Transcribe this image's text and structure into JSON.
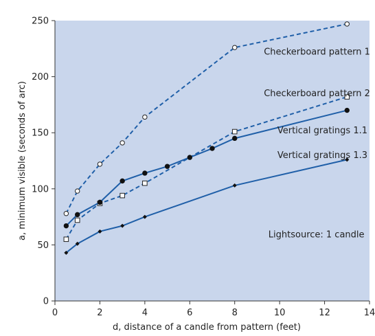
{
  "chart_data": {
    "type": "line",
    "title": "",
    "xlabel": "d, distance of a candle from pattern (feet)",
    "ylabel": "a, minimum visible (seconds of arc)",
    "xlim": [
      0,
      14
    ],
    "ylim": [
      0,
      250
    ],
    "xticks": [
      0,
      2,
      4,
      6,
      8,
      10,
      12,
      14
    ],
    "yticks": [
      0,
      50,
      100,
      150,
      200,
      250
    ],
    "grid": false,
    "background_color": "#c9d6ec",
    "line_color": "#1f5fa8",
    "series": [
      {
        "name": "Checkerboard pattern 1",
        "style": "dashed",
        "marker": "open-circle",
        "x": [
          0.5,
          1,
          2,
          3,
          4,
          8,
          13
        ],
        "y": [
          78,
          98,
          122,
          141,
          164,
          226,
          247
        ]
      },
      {
        "name": "Checkerboard pattern 2",
        "style": "dashed",
        "marker": "open-square",
        "x": [
          0.5,
          1,
          2,
          3,
          4,
          8,
          13
        ],
        "y": [
          55,
          72,
          87,
          94,
          105,
          151,
          182
        ]
      },
      {
        "name": "Vertical gratings 1.1",
        "style": "solid",
        "marker": "filled-circle",
        "x": [
          0.5,
          1,
          2,
          3,
          4,
          5,
          6,
          7,
          8,
          13
        ],
        "y": [
          67,
          77,
          88,
          107,
          114,
          120,
          128,
          136,
          145,
          170
        ]
      },
      {
        "name": "Vertical gratings 1.3",
        "style": "solid",
        "marker": "filled-diamond",
        "x": [
          0.5,
          1,
          2,
          3,
          4,
          8,
          13
        ],
        "y": [
          43,
          51,
          62,
          67,
          75,
          103,
          126
        ]
      }
    ],
    "annotations": [
      {
        "text": "Checkerboard pattern 1",
        "x": 9.3,
        "y": 222
      },
      {
        "text": "Checkerboard pattern 2",
        "x": 9.3,
        "y": 185
      },
      {
        "text": "Vertical gratings 1.1",
        "x": 9.9,
        "y": 152
      },
      {
        "text": "Vertical gratings 1.3",
        "x": 9.9,
        "y": 130
      },
      {
        "text": "Lightsource: 1 candle",
        "x": 9.5,
        "y": 59
      }
    ]
  }
}
